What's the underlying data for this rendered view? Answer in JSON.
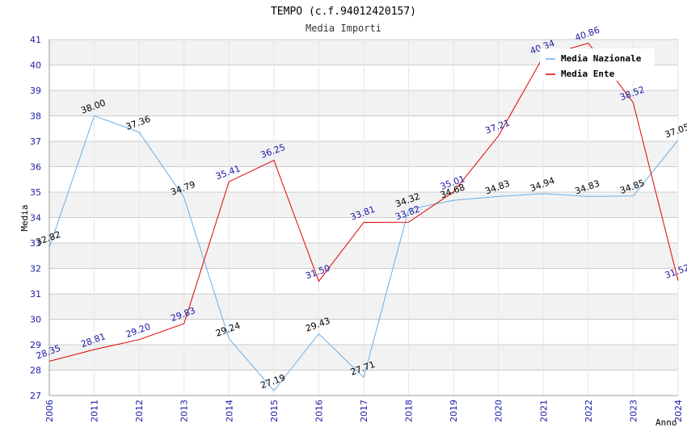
{
  "chart_data": {
    "type": "line",
    "title": "TEMPO (c.f.94012420157)",
    "subtitle": "Media Importi",
    "xlabel": "Anno",
    "ylabel": "Media",
    "ylim": [
      27,
      41
    ],
    "y_ticks": [
      27,
      28,
      29,
      30,
      31,
      32,
      33,
      34,
      35,
      36,
      37,
      38,
      39,
      40,
      41
    ],
    "categories": [
      "2006",
      "2011",
      "2012",
      "2013",
      "2014",
      "2015",
      "2016",
      "2017",
      "2018",
      "2019",
      "2020",
      "2021",
      "2022",
      "2023",
      "2024"
    ],
    "series": [
      {
        "name": "Media Nazionale",
        "color": "#6aaee6",
        "values": [
          32.82,
          38.0,
          37.36,
          34.79,
          29.24,
          27.19,
          29.43,
          27.71,
          34.32,
          34.68,
          34.83,
          34.94,
          34.83,
          34.85,
          37.05
        ],
        "labels": [
          "32.82",
          "38.00",
          "37.36",
          "34.79",
          "29.24",
          "27.19",
          "29.43",
          "27.71",
          "34.32",
          "34.68",
          "34.83",
          "34.94",
          "34.83",
          "34.85",
          "37.05"
        ]
      },
      {
        "name": "Media Ente",
        "color": "#e00000",
        "values": [
          28.35,
          28.81,
          29.2,
          29.83,
          35.41,
          36.25,
          31.5,
          33.81,
          33.82,
          35.01,
          37.21,
          40.34,
          40.86,
          38.52,
          31.52
        ],
        "labels": [
          "28.35",
          "28.81",
          "29.20",
          "29.83",
          "35.41",
          "36.25",
          "31.50",
          "33.81",
          "33.82",
          "35.01",
          "37.21",
          "40.34",
          "40.86",
          "38.52",
          "31.52"
        ]
      }
    ],
    "legend_position": "top-right",
    "band_colors": [
      "#f2f2f2",
      "#ffffff"
    ],
    "grid_color": "#cccccc"
  }
}
